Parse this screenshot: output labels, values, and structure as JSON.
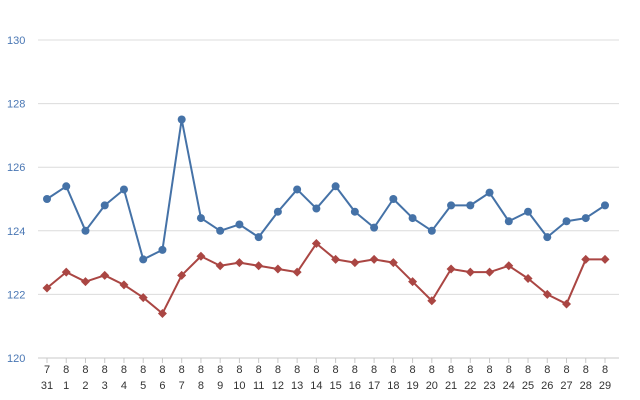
{
  "chart_data": {
    "type": "line",
    "title": "",
    "xlabel": "",
    "ylabel": "",
    "ylim": [
      120,
      130
    ],
    "yticks": [
      120,
      122,
      124,
      126,
      128,
      130
    ],
    "grid": true,
    "legend": "none",
    "categories": [
      {
        "month": "7",
        "day": "31"
      },
      {
        "month": "8",
        "day": "1"
      },
      {
        "month": "8",
        "day": "2"
      },
      {
        "month": "8",
        "day": "3"
      },
      {
        "month": "8",
        "day": "4"
      },
      {
        "month": "8",
        "day": "5"
      },
      {
        "month": "8",
        "day": "6"
      },
      {
        "month": "8",
        "day": "7"
      },
      {
        "month": "8",
        "day": "8"
      },
      {
        "month": "8",
        "day": "9"
      },
      {
        "month": "8",
        "day": "10"
      },
      {
        "month": "8",
        "day": "11"
      },
      {
        "month": "8",
        "day": "12"
      },
      {
        "month": "8",
        "day": "13"
      },
      {
        "month": "8",
        "day": "14"
      },
      {
        "month": "8",
        "day": "15"
      },
      {
        "month": "8",
        "day": "16"
      },
      {
        "month": "8",
        "day": "17"
      },
      {
        "month": "8",
        "day": "18"
      },
      {
        "month": "8",
        "day": "19"
      },
      {
        "month": "8",
        "day": "20"
      },
      {
        "month": "8",
        "day": "21"
      },
      {
        "month": "8",
        "day": "22"
      },
      {
        "month": "8",
        "day": "23"
      },
      {
        "month": "8",
        "day": "24"
      },
      {
        "month": "8",
        "day": "25"
      },
      {
        "month": "8",
        "day": "26"
      },
      {
        "month": "8",
        "day": "27"
      },
      {
        "month": "8",
        "day": "28"
      },
      {
        "month": "8",
        "day": "29"
      }
    ],
    "series": [
      {
        "color": "#4572a7",
        "marker": "circle",
        "values": [
          125.0,
          125.4,
          124.0,
          124.8,
          125.3,
          123.1,
          123.4,
          127.5,
          124.4,
          124.0,
          124.2,
          123.8,
          124.6,
          125.3,
          124.7,
          125.4,
          124.6,
          124.1,
          125.0,
          124.4,
          124.0,
          124.8,
          124.8,
          125.2,
          124.3,
          124.6,
          123.8,
          124.3,
          124.4,
          124.8
        ]
      },
      {
        "color": "#aa4643",
        "marker": "diamond",
        "values": [
          122.2,
          122.7,
          122.4,
          122.6,
          122.3,
          121.9,
          121.4,
          122.6,
          123.2,
          122.9,
          123.0,
          122.9,
          122.8,
          122.7,
          123.6,
          123.1,
          123.0,
          123.1,
          123.0,
          122.4,
          121.8,
          122.8,
          122.7,
          122.7,
          122.9,
          122.5,
          122.0,
          121.7,
          123.1,
          123.1
        ]
      }
    ]
  }
}
